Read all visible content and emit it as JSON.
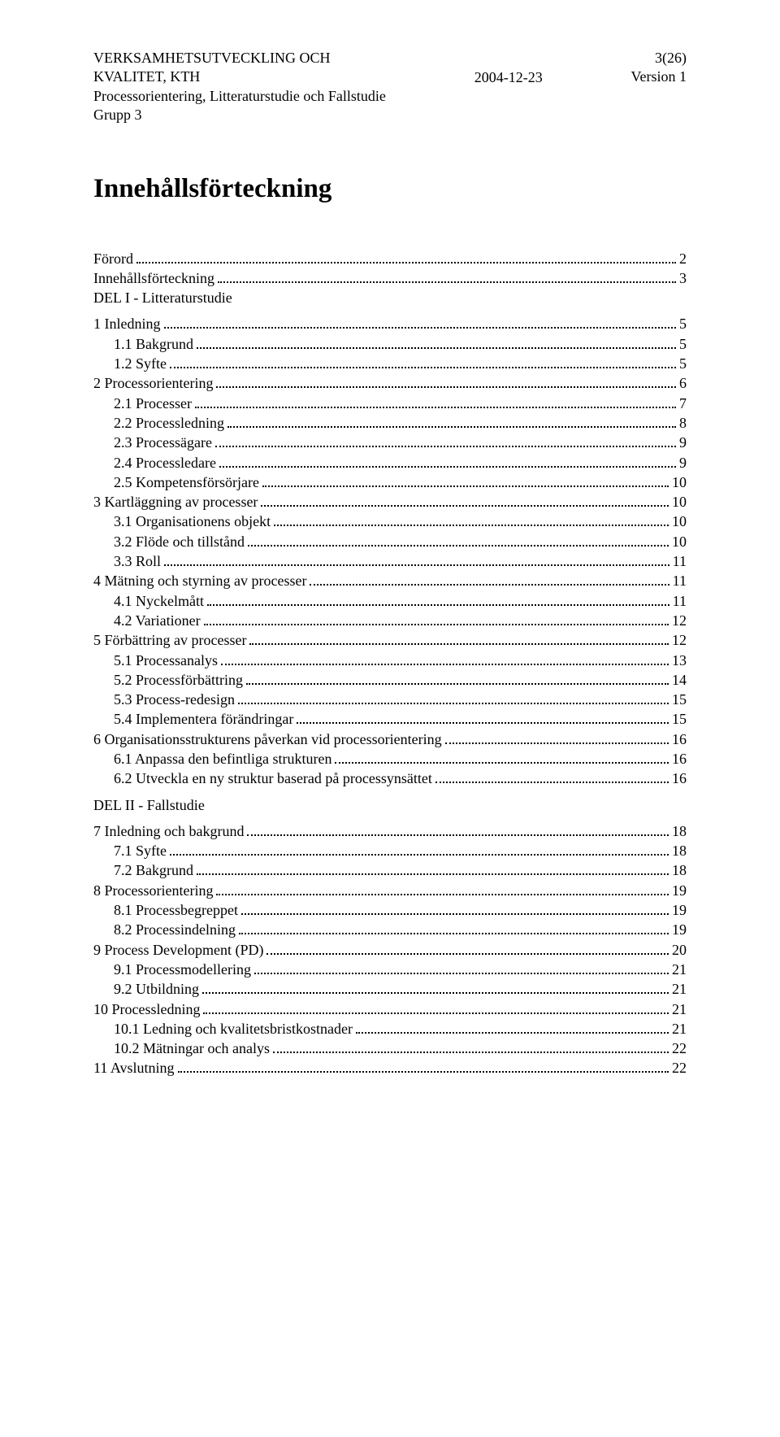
{
  "header": {
    "left_lines": [
      "VERKSAMHETSUTVECKLING OCH",
      "KVALITET, KTH",
      "Processorientering, Litteraturstudie och Fallstudie",
      "Grupp 3"
    ],
    "center": "2004-12-23",
    "right_lines": [
      "3(26)",
      "Version 1"
    ]
  },
  "title": "Innehållsförteckning",
  "toc": [
    {
      "label": "Förord",
      "page": "2",
      "indent": 0
    },
    {
      "label": "Innehållsförteckning",
      "page": "3",
      "indent": 0
    },
    {
      "label": "DEL I - Litteraturstudie",
      "indent": 0,
      "no_page": true,
      "part": true,
      "first_part": true
    },
    {
      "label": "1 Inledning",
      "page": "5",
      "indent": 0
    },
    {
      "label": "1.1 Bakgrund",
      "page": "5",
      "indent": 1
    },
    {
      "label": "1.2 Syfte",
      "page": "5",
      "indent": 1
    },
    {
      "label": "2 Processorientering",
      "page": "6",
      "indent": 0
    },
    {
      "label": "2.1 Processer",
      "page": "7",
      "indent": 1
    },
    {
      "label": "2.2 Processledning",
      "page": "8",
      "indent": 1
    },
    {
      "label": "2.3 Processägare",
      "page": "9",
      "indent": 1
    },
    {
      "label": "2.4 Processledare",
      "page": "9",
      "indent": 1
    },
    {
      "label": "2.5 Kompetensförsörjare",
      "page": "10",
      "indent": 1
    },
    {
      "label": "3 Kartläggning av processer",
      "page": "10",
      "indent": 0
    },
    {
      "label": "3.1 Organisationens objekt",
      "page": "10",
      "indent": 1
    },
    {
      "label": "3.2 Flöde och tillstånd",
      "page": "10",
      "indent": 1
    },
    {
      "label": "3.3 Roll",
      "page": "11",
      "indent": 1
    },
    {
      "label": "4 Mätning och styrning av processer",
      "page": "11",
      "indent": 0
    },
    {
      "label": "4.1 Nyckelmått",
      "page": "11",
      "indent": 1
    },
    {
      "label": "4.2 Variationer",
      "page": "12",
      "indent": 1
    },
    {
      "label": "5 Förbättring av processer",
      "page": "12",
      "indent": 0
    },
    {
      "label": "5.1 Processanalys",
      "page": "13",
      "indent": 1
    },
    {
      "label": "5.2 Processförbättring",
      "page": "14",
      "indent": 1
    },
    {
      "label": "5.3 Process-redesign",
      "page": "15",
      "indent": 1
    },
    {
      "label": "5.4 Implementera förändringar",
      "page": "15",
      "indent": 1
    },
    {
      "label": "6 Organisationsstrukturens påverkan vid processorientering",
      "page": "16",
      "indent": 0
    },
    {
      "label": "6.1 Anpassa den befintliga strukturen",
      "page": "16",
      "indent": 1
    },
    {
      "label": "6.2 Utveckla en ny struktur baserad på processynsättet",
      "page": "16",
      "indent": 1
    },
    {
      "label": "DEL II - Fallstudie",
      "indent": 0,
      "no_page": true,
      "part": true
    },
    {
      "label": "7 Inledning och bakgrund",
      "page": "18",
      "indent": 0
    },
    {
      "label": "7.1 Syfte",
      "page": "18",
      "indent": 1
    },
    {
      "label": "7.2 Bakgrund",
      "page": "18",
      "indent": 1
    },
    {
      "label": "8 Processorientering",
      "page": "19",
      "indent": 0
    },
    {
      "label": "8.1 Processbegreppet",
      "page": "19",
      "indent": 1
    },
    {
      "label": "8.2 Processindelning",
      "page": "19",
      "indent": 1
    },
    {
      "label": "9 Process Development (PD)",
      "page": "20",
      "indent": 0
    },
    {
      "label": "9.1 Processmodellering",
      "page": "21",
      "indent": 1
    },
    {
      "label": "9.2 Utbildning",
      "page": "21",
      "indent": 1
    },
    {
      "label": "10 Processledning",
      "page": "21",
      "indent": 0
    },
    {
      "label": "10.1 Ledning och kvalitetsbristkostnader",
      "page": "21",
      "indent": 1
    },
    {
      "label": "10.2 Mätningar och analys",
      "page": "22",
      "indent": 1
    },
    {
      "label": "11 Avslutning",
      "page": "22",
      "indent": 0
    }
  ]
}
